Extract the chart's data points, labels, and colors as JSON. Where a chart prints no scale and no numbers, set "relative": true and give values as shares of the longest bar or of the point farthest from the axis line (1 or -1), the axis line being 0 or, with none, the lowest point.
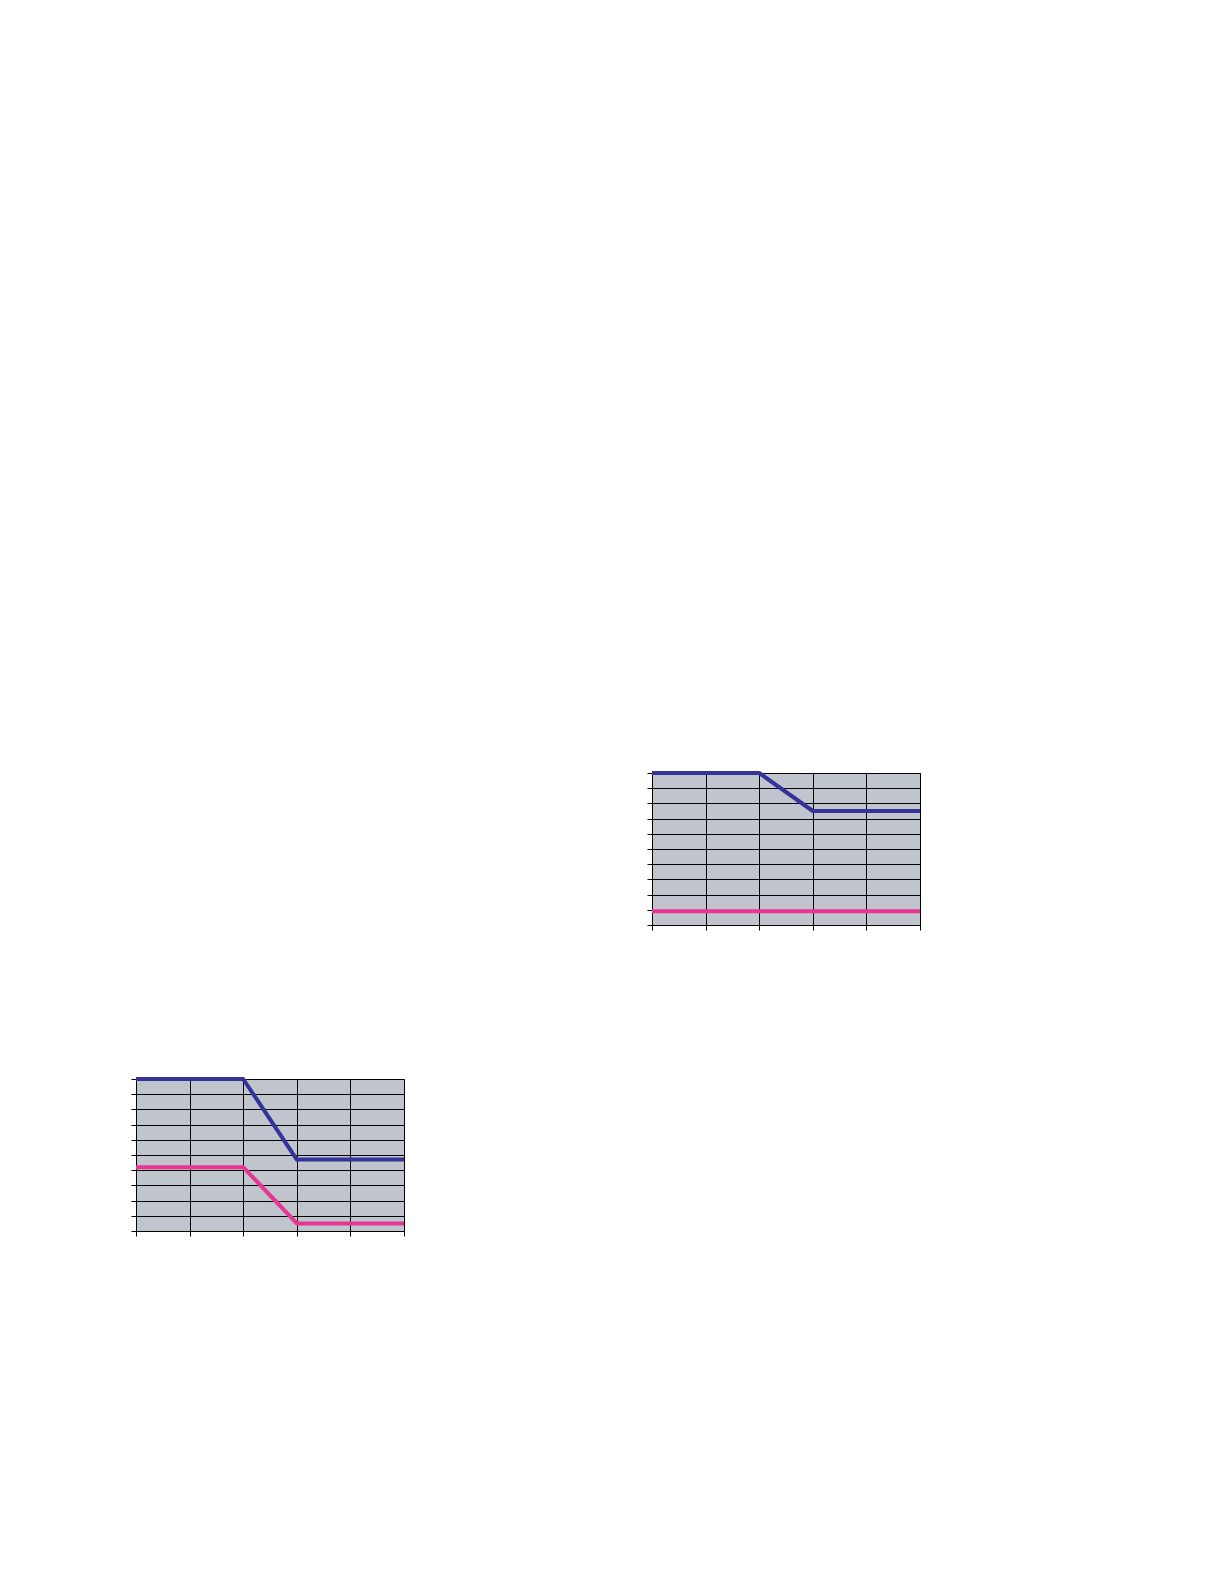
{
  "chart_data": [
    {
      "type": "line",
      "relative": true,
      "categories": [
        null,
        null,
        null,
        null,
        null,
        null
      ],
      "grid": true,
      "line_style": "solid",
      "series": [
        {
          "color": "#333399",
          "values": [
            1,
            1,
            1,
            0.75,
            0.75,
            0.75
          ]
        },
        {
          "color": "#e83591",
          "values": [
            0.09,
            0.09,
            0.09,
            0.09,
            0.09,
            0.09
          ]
        }
      ]
    },
    {
      "type": "line",
      "relative": true,
      "categories": [
        null,
        null,
        null,
        null,
        null,
        null
      ],
      "grid": true,
      "line_style": "solid",
      "series": [
        {
          "color": "#333399",
          "values": [
            1,
            1,
            1,
            0.47,
            0.47,
            0.47
          ]
        },
        {
          "color": "#e83591",
          "values": [
            0.42,
            0.42,
            0.42,
            0.05,
            0.05,
            0.05
          ]
        }
      ]
    }
  ]
}
